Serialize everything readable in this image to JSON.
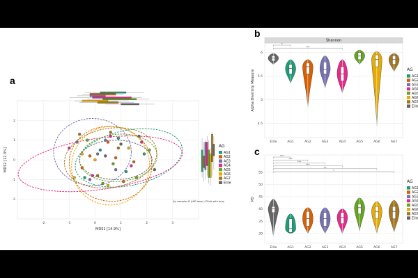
{
  "groups": [
    "AG1",
    "AG2",
    "AG3",
    "AG4",
    "AG5",
    "AG6",
    "AG7",
    "Elite"
  ],
  "colors": {
    "AG1": "#1b9e77",
    "AG2": "#d95f02",
    "AG3": "#7570b3",
    "AG4": "#e7298a",
    "AG5": "#66a61e",
    "AG6": "#e6ab02",
    "AG7": "#a6761d",
    "Elite": "#666666"
  },
  "panels": {
    "a": "a",
    "b": "b",
    "c": "c"
  },
  "footnote": "(b) samples B (HIE base ) PCoA with bray",
  "chart_data": [
    {
      "panel": "a",
      "type": "scatter",
      "xlabel": "MDS1 [14.9%]",
      "ylabel": "MDS2 [12.3%]",
      "xlim": [
        -3,
        4
      ],
      "ylim": [
        -3,
        3
      ],
      "x_ticks": [
        "-2",
        "-1",
        "0",
        "1",
        "2",
        "3"
      ],
      "y_ticks": [
        "-2",
        "-1",
        "0",
        "1",
        "2"
      ],
      "legend_title": "AG",
      "legend_labels": [
        "AG1",
        "AG2",
        "AG3",
        "AG4",
        "AG5",
        "AG6",
        "AG7",
        "Elite"
      ],
      "legend_position": "right",
      "grid": true,
      "ellipses": [
        {
          "group": "AG1",
          "cx": 1.3,
          "cy": 0.1,
          "rx": 2.1,
          "ry": 1.4,
          "angle": -12
        },
        {
          "group": "AG2",
          "cx": 0.6,
          "cy": -0.2,
          "rx": 1.6,
          "ry": 1.9,
          "angle": 10
        },
        {
          "group": "AG3",
          "cx": -0.1,
          "cy": 0.4,
          "rx": 1.5,
          "ry": 1.7,
          "angle": 0
        },
        {
          "group": "AG4",
          "cx": 0.2,
          "cy": -0.2,
          "rx": 3.2,
          "ry": 1.3,
          "angle": -8
        },
        {
          "group": "AG5",
          "cx": 0.9,
          "cy": 0.1,
          "rx": 1.5,
          "ry": 1.2,
          "angle": -5
        },
        {
          "group": "AG6",
          "cx": 0.6,
          "cy": -0.3,
          "rx": 1.5,
          "ry": 2.0,
          "angle": 30
        },
        {
          "group": "AG7",
          "cx": 0.6,
          "cy": 0.1,
          "rx": 1.8,
          "ry": 1.5,
          "angle": -10
        },
        {
          "group": "Elite",
          "cx": 0.8,
          "cy": 0.0,
          "rx": 1.4,
          "ry": 1.0,
          "angle": 0
        }
      ],
      "series": [
        {
          "name": "AG1",
          "x": [
            0.2,
            1.2,
            1.9,
            0.9,
            -0.4
          ],
          "y": [
            0.5,
            -0.6,
            0.3,
            1.1,
            -0.9
          ]
        },
        {
          "name": "AG2",
          "x": [
            -0.5,
            0.5,
            1.1,
            -0.2,
            0.8
          ],
          "y": [
            -0.4,
            0.9,
            -1.1,
            0.2,
            0.1
          ]
        },
        {
          "name": "AG3",
          "x": [
            -0.7,
            0.1,
            0.8,
            0.4,
            -0.2
          ],
          "y": [
            0.9,
            0.3,
            -0.5,
            1.0,
            -1.0
          ]
        },
        {
          "name": "AG4",
          "x": [
            -1.0,
            1.4,
            0.6,
            -0.1,
            1.8
          ],
          "y": [
            0.6,
            -0.3,
            1.2,
            -0.8,
            0.9
          ]
        },
        {
          "name": "AG5",
          "x": [
            -0.3,
            0.7,
            1.6,
            2.1,
            0.3
          ],
          "y": [
            1.0,
            -0.2,
            -0.9,
            0.5,
            -1.2
          ]
        },
        {
          "name": "AG6",
          "x": [
            -0.8,
            0.0,
            1.3,
            0.5,
            -0.5
          ],
          "y": [
            -0.9,
            0.0,
            0.6,
            -1.3,
            0.3
          ]
        },
        {
          "name": "AG7",
          "x": [
            0.1,
            0.9,
            1.5,
            -0.6,
            0.6
          ],
          "y": [
            -0.8,
            0.6,
            -0.1,
            1.3,
            1.4
          ]
        },
        {
          "name": "Elite",
          "x": [
            1.0,
            1.7,
            2.3,
            0.4
          ],
          "y": [
            0.8,
            1.2,
            -0.5,
            0.2
          ]
        }
      ]
    },
    {
      "panel": "b",
      "type": "violin",
      "facet_title": "Shannon",
      "ylabel": "Alpha Diversity Measure",
      "categories": [
        "Elite",
        "AG1",
        "AG2",
        "AG3",
        "AG4",
        "AG5",
        "AG6",
        "AG7"
      ],
      "ylim": [
        4.2,
        6.2
      ],
      "y_ticks": [
        4.5,
        5.0,
        5.5,
        6.0
      ],
      "legend_title": "AG",
      "legend_labels": [
        "AG1",
        "AG2",
        "AG3",
        "AG4",
        "AG5",
        "AG6",
        "AG7",
        "Elite"
      ],
      "legend_position": "right",
      "grid": true,
      "values": [
        {
          "category": "Elite",
          "min": 5.75,
          "q1": 5.82,
          "median": 5.88,
          "q3": 5.93,
          "max": 5.98
        },
        {
          "category": "AG1",
          "min": 5.35,
          "q1": 5.55,
          "median": 5.66,
          "q3": 5.75,
          "max": 5.85
        },
        {
          "category": "AG2",
          "min": 4.85,
          "q1": 5.55,
          "median": 5.7,
          "q3": 5.78,
          "max": 5.85
        },
        {
          "category": "AG3",
          "min": 5.25,
          "q1": 5.55,
          "median": 5.65,
          "q3": 5.8,
          "max": 5.93
        },
        {
          "category": "AG4",
          "min": 5.15,
          "q1": 5.4,
          "median": 5.55,
          "q3": 5.7,
          "max": 5.85
        },
        {
          "category": "AG5",
          "min": 5.75,
          "q1": 5.85,
          "median": 5.93,
          "q3": 6.0,
          "max": 6.05
        },
        {
          "category": "AG6",
          "min": 4.45,
          "q1": 5.7,
          "median": 5.85,
          "q3": 5.95,
          "max": 6.02
        },
        {
          "category": "AG7",
          "min": 5.6,
          "q1": 5.75,
          "median": 5.85,
          "q3": 5.93,
          "max": 5.98
        }
      ],
      "significance": [
        {
          "from": "Elite",
          "to": "AG1",
          "label": "*"
        },
        {
          "from": "Elite",
          "to": "AG4",
          "label": "***"
        }
      ]
    },
    {
      "panel": "c",
      "type": "violin",
      "ylabel": "PD",
      "categories": [
        "Elite",
        "AG1",
        "AG2",
        "AG3",
        "AG4",
        "AG5",
        "AG6",
        "AG7"
      ],
      "ylim": [
        26,
        62
      ],
      "y_ticks": [
        30,
        35,
        40,
        45,
        50,
        55
      ],
      "legend_title": "AG",
      "legend_labels": [
        "AG1",
        "AG2",
        "AG3",
        "AG4",
        "AG5",
        "AG6",
        "AG7",
        "Elite"
      ],
      "legend_position": "right",
      "grid": true,
      "values": [
        {
          "category": "Elite",
          "min": 29,
          "q1": 38.5,
          "median": 40,
          "q3": 41,
          "max": 44
        },
        {
          "category": "AG1",
          "min": 30,
          "q1": 30.5,
          "median": 32,
          "q3": 36,
          "max": 38
        },
        {
          "category": "AG2",
          "min": 30,
          "q1": 33,
          "median": 36,
          "q3": 39,
          "max": 40.5
        },
        {
          "category": "AG3",
          "min": 30,
          "q1": 33,
          "median": 36,
          "q3": 38.5,
          "max": 40.5
        },
        {
          "category": "AG4",
          "min": 30,
          "q1": 34,
          "median": 36.5,
          "q3": 38.5,
          "max": 40
        },
        {
          "category": "AG5",
          "min": 31,
          "q1": 38,
          "median": 40.5,
          "q3": 42,
          "max": 44.5
        },
        {
          "category": "AG6",
          "min": 30,
          "q1": 36,
          "median": 39,
          "q3": 41,
          "max": 43
        },
        {
          "category": "AG7",
          "min": 30.5,
          "q1": 36,
          "median": 39,
          "q3": 41,
          "max": 43.5
        }
      ],
      "significance": [
        {
          "from": "Elite",
          "to": "AG1",
          "label": "***"
        },
        {
          "from": "Elite",
          "to": "AG2",
          "label": "***"
        },
        {
          "from": "Elite",
          "to": "AG3",
          "label": "***"
        },
        {
          "from": "Elite",
          "to": "AG4",
          "label": "***"
        },
        {
          "from": "Elite",
          "to": "AG6",
          "label": "**"
        },
        {
          "from": "Elite",
          "to": "AG7",
          "label": "*"
        }
      ]
    }
  ]
}
